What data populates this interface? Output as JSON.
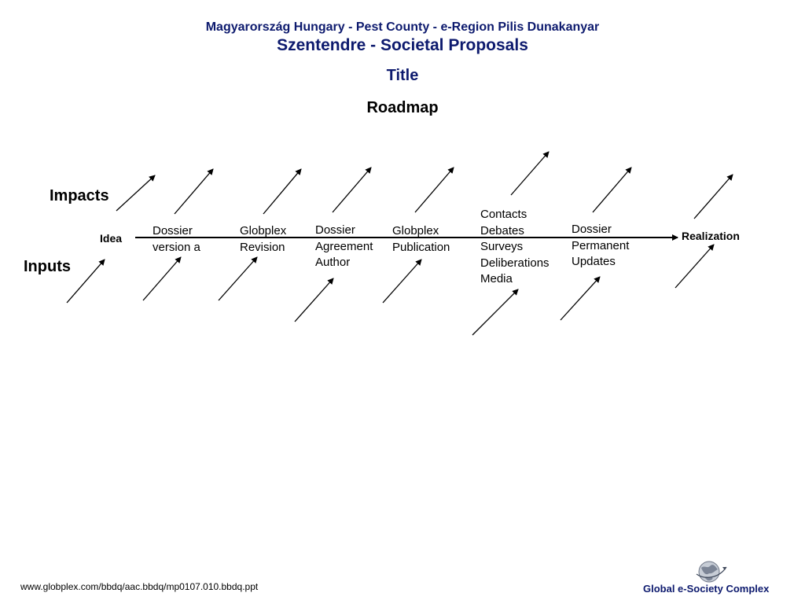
{
  "header": {
    "line1": "Magyarország Hungary - Pest County - e-Region Pilis Dunakanyar",
    "line2": "Szentendre - Societal Proposals",
    "line3": "Title"
  },
  "roadmap_title": "Roadmap",
  "labels": {
    "impacts": "Impacts",
    "inputs": "Inputs",
    "idea": "Idea",
    "realization": "Realization"
  },
  "milestones": [
    {
      "lines": [
        "Dossier",
        "version a"
      ]
    },
    {
      "lines": [
        "Globplex",
        "Revision"
      ]
    },
    {
      "lines": [
        "Dossier",
        "Agreement",
        "Author"
      ]
    },
    {
      "lines": [
        "Globplex",
        "Publication"
      ]
    },
    {
      "lines": [
        "Contacts",
        "Debates",
        "Surveys",
        "Deliberations",
        "Media"
      ]
    },
    {
      "lines": [
        "Dossier",
        "Permanent",
        "Updates"
      ]
    }
  ],
  "footer": {
    "url": "www.globplex.com/bbdq/aac.bbdq/mp0107.010.bbdq.ppt",
    "brand": "Global e-Society Complex",
    "logo_icon": "globe-icon"
  },
  "colors": {
    "header": "#0d1a6e",
    "lines": "#000000"
  }
}
